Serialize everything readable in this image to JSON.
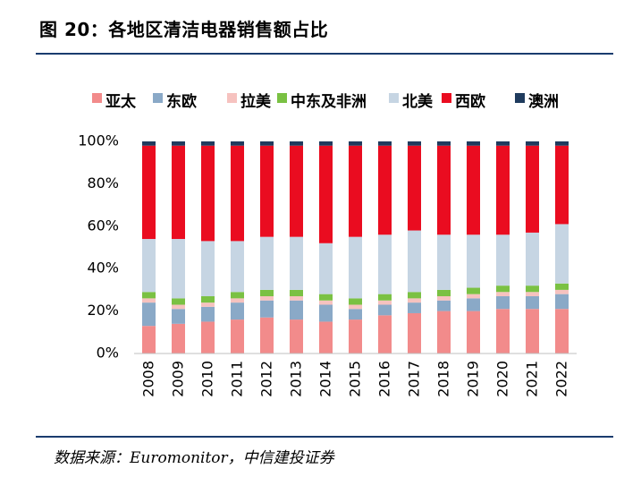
{
  "header": {
    "title": "图 20：各地区清洁电器销售额占比"
  },
  "footer": {
    "source": "数据来源：Euromonitor，中信建投证券"
  },
  "colors": {
    "rule": "#1a3c6e"
  },
  "chart_data": {
    "type": "bar",
    "stacked": true,
    "percent": true,
    "title": "",
    "xlabel": "",
    "ylabel": "",
    "ylim": [
      0,
      100
    ],
    "yticks": [
      "0%",
      "20%",
      "40%",
      "60%",
      "80%",
      "100%"
    ],
    "grid": false,
    "legend_position": "top",
    "categories": [
      "2008",
      "2009",
      "2010",
      "2011",
      "2012",
      "2013",
      "2014",
      "2015",
      "2016",
      "2017",
      "2018",
      "2019",
      "2020",
      "2021",
      "2022"
    ],
    "series": [
      {
        "name": "亚太",
        "color": "#f28b8b",
        "values": [
          13,
          14,
          15,
          16,
          17,
          16,
          15,
          16,
          18,
          19,
          20,
          20,
          21,
          21,
          21
        ]
      },
      {
        "name": "东欧",
        "color": "#8aa9c7",
        "values": [
          11,
          7,
          7,
          8,
          8,
          9,
          8,
          5,
          5,
          5,
          5,
          6,
          6,
          6,
          7
        ]
      },
      {
        "name": "拉美",
        "color": "#f6c2bf",
        "values": [
          2,
          2,
          2,
          2,
          2,
          2,
          2,
          2,
          2,
          2,
          2,
          2,
          2,
          2,
          2
        ]
      },
      {
        "name": "中东及非洲",
        "color": "#7ac143",
        "values": [
          3,
          3,
          3,
          3,
          3,
          3,
          3,
          3,
          3,
          3,
          3,
          3,
          3,
          3,
          3
        ]
      },
      {
        "name": "北美",
        "color": "#c6d5e3",
        "values": [
          25,
          28,
          26,
          24,
          25,
          25,
          24,
          29,
          28,
          29,
          26,
          25,
          24,
          25,
          28
        ]
      },
      {
        "name": "西欧",
        "color": "#ea0c20",
        "values": [
          44,
          44,
          45,
          45,
          43,
          43,
          46,
          43,
          42,
          40,
          42,
          42,
          42,
          41,
          37
        ]
      },
      {
        "name": "澳洲",
        "color": "#1f3b5e",
        "values": [
          2,
          2,
          2,
          2,
          2,
          2,
          2,
          2,
          2,
          2,
          2,
          2,
          2,
          2,
          2
        ]
      }
    ]
  }
}
